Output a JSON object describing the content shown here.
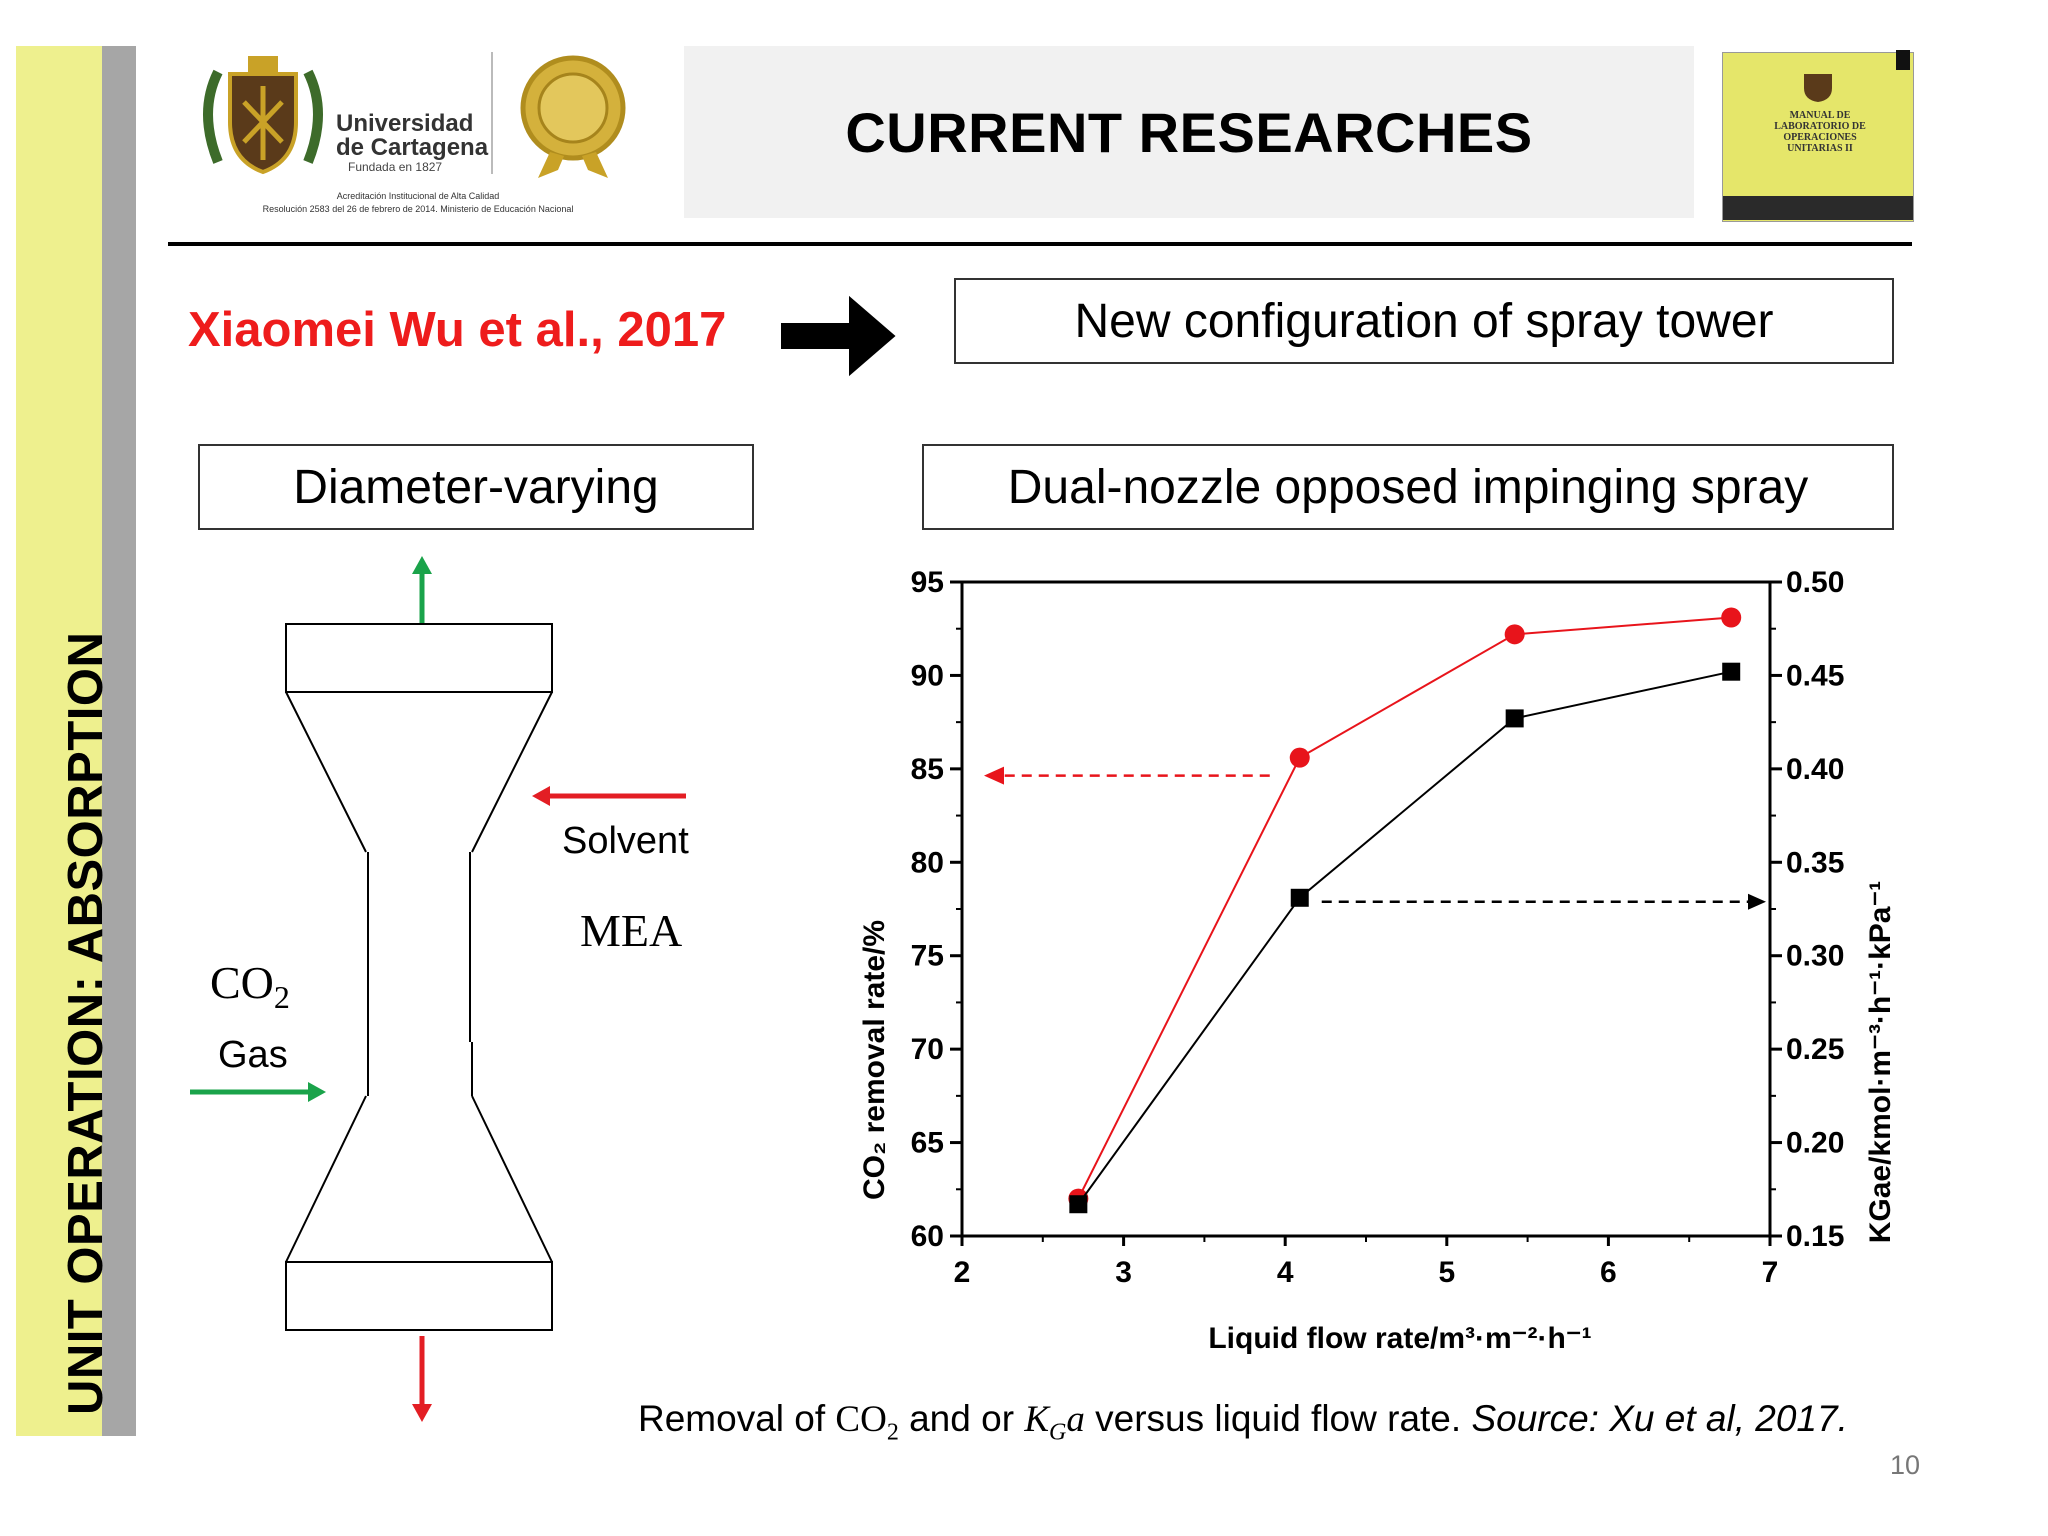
{
  "side_banner": {
    "text": "UNIT OPERATION: ABSORPTION"
  },
  "header": {
    "title": "CURRENT RESEARCHES",
    "logo": {
      "name_line1": "Universidad",
      "name_line2": "de Cartagena",
      "founded": "Fundada en 1827",
      "accreditation_line1": "Acreditación Institucional de Alta Calidad",
      "accreditation_line2": "Resolución 2583 del 26 de febrero de 2014. Ministerio de Educación Nacional"
    },
    "book": {
      "title_line1": "MANUAL DE",
      "title_line2": "LABORATORIO DE",
      "title_line3": "OPERACIONES",
      "title_line4": "UNITARIAS II"
    }
  },
  "author": "Xiaomei Wu et al., 2017",
  "config_title": "New configuration of spray tower",
  "left_box": "Diameter-varying",
  "right_box": "Dual-nozzle opposed impinging spray",
  "diagram": {
    "solvent": "Solvent",
    "mea": "MEA",
    "co2": "CO",
    "co2_sub": "2",
    "gas": "Gas",
    "colors": {
      "gas_arrow": "#1aa34a",
      "solvent_arrow": "#e31e24"
    }
  },
  "chart_data": {
    "type": "line",
    "xlabel": "Liquid flow rate/m³·m⁻²·h⁻¹",
    "ylabel_left": "CO₂ removal rate/%",
    "ylabel_right": "KGae/kmol·m⁻³·h⁻¹·kPa⁻¹",
    "xlim": [
      2,
      7
    ],
    "ylim_left": [
      60,
      95
    ],
    "ylim_right": [
      0.15,
      0.5
    ],
    "x_ticks": [
      "2",
      "3",
      "4",
      "5",
      "6",
      "7"
    ],
    "y_left_ticks": [
      "60",
      "65",
      "70",
      "75",
      "80",
      "85",
      "90",
      "95"
    ],
    "y_right_ticks": [
      "0.15",
      "0.20",
      "0.25",
      "0.30",
      "0.35",
      "0.40",
      "0.45",
      "0.50"
    ],
    "series": [
      {
        "axis": "left",
        "color": "#e8141b",
        "marker": "circle",
        "x": [
          2.72,
          4.09,
          5.42,
          6.76
        ],
        "values": [
          62.0,
          85.6,
          92.2,
          93.1
        ]
      },
      {
        "axis": "right",
        "color": "#000000",
        "marker": "square",
        "x": [
          2.72,
          4.09,
          5.42,
          6.76
        ],
        "values": [
          0.167,
          0.331,
          0.427,
          0.452
        ]
      }
    ],
    "annotations": [
      {
        "type": "dashed-arrow",
        "color": "#e8141b",
        "from_series": 0,
        "direction": "left"
      },
      {
        "type": "dashed-arrow",
        "color": "#000000",
        "from_series": 1,
        "direction": "right"
      }
    ],
    "grid": false
  },
  "caption": {
    "prefix": "Removal of ",
    "co2": "CO",
    "co2_sub": "2",
    "mid": " and or ",
    "kga_k": "K",
    "kga_sub": "G",
    "kga_a": "a",
    "suffix": " versus liquid flow rate. ",
    "source": "Source: Xu et al, 2017."
  },
  "slide_number": "10"
}
